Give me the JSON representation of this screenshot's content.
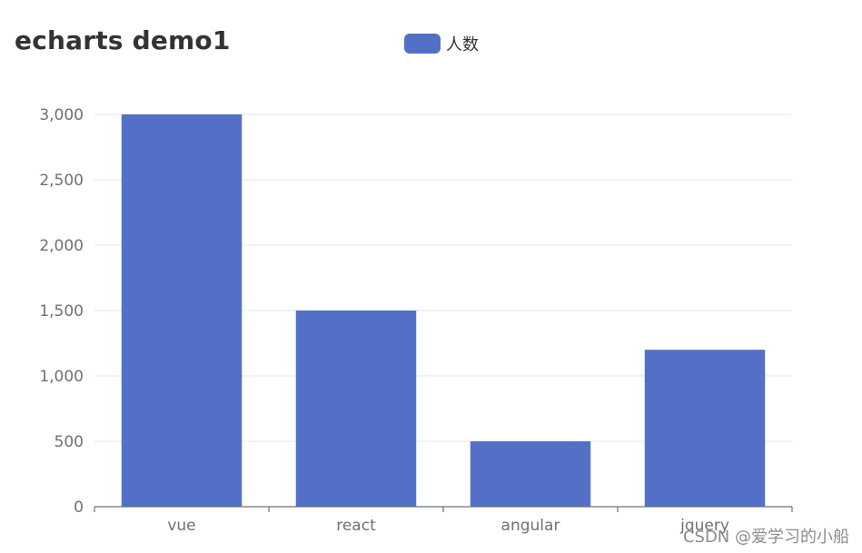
{
  "chart_data": {
    "type": "bar",
    "title": "echarts demo1",
    "categories": [
      "vue",
      "react",
      "angular",
      "jquery"
    ],
    "series": [
      {
        "name": "人数",
        "values": [
          3000,
          1500,
          500,
          1200
        ],
        "color": "#5470c6"
      }
    ],
    "y_ticks": [
      "0",
      "500",
      "1,000",
      "1,500",
      "2,000",
      "2,500",
      "3,000"
    ],
    "ylim": [
      0,
      3000
    ],
    "xlabel": "",
    "ylabel": "",
    "grid": true,
    "legend_position": "top-center"
  },
  "watermark": "CSDN @爱学习的小船"
}
